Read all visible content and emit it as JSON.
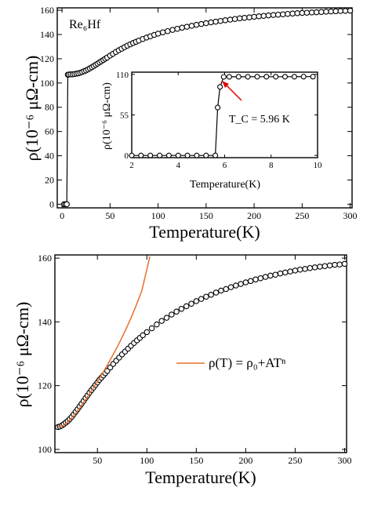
{
  "chart_data": [
    {
      "type": "scatter",
      "label": "Re₆Hf",
      "xlabel": "Temperature(K)",
      "ylabel": "ρ(10⁻⁶ μΩ-cm)",
      "xlim": [
        -5,
        302
      ],
      "ylim": [
        -3,
        162
      ],
      "xticks": [
        0,
        50,
        100,
        150,
        200,
        250,
        300
      ],
      "yticks": [
        0,
        20,
        40,
        60,
        80,
        100,
        120,
        140,
        160
      ],
      "series": [
        {
          "x": [
            2,
            3.5,
            5,
            6,
            7,
            9,
            11,
            13,
            15,
            17,
            19,
            21,
            23,
            25,
            27,
            29,
            31,
            33,
            35,
            37,
            39,
            41,
            43,
            45,
            47,
            50,
            53,
            56,
            59,
            62,
            65,
            68,
            71,
            74,
            77,
            80,
            84,
            88,
            92,
            96,
            100,
            105,
            110,
            115,
            120,
            125,
            130,
            135,
            140,
            145,
            150,
            155,
            160,
            165,
            170,
            175,
            180,
            185,
            190,
            195,
            200,
            205,
            210,
            215,
            220,
            225,
            230,
            235,
            240,
            245,
            250,
            255,
            260,
            265,
            270,
            275,
            280,
            285,
            290,
            295,
            300
          ],
          "y": [
            0,
            0,
            0,
            106.9,
            107,
            107.1,
            107.2,
            107.4,
            107.7,
            108,
            108.5,
            109,
            109.7,
            110.4,
            111.2,
            112.1,
            113,
            114,
            115,
            116,
            117,
            118,
            119,
            120,
            121,
            122.6,
            124.1,
            125.6,
            127,
            128.3,
            129.6,
            130.8,
            131.9,
            133,
            134,
            135,
            136.3,
            137.5,
            138.6,
            139.7,
            140.7,
            141.8,
            142.8,
            143.8,
            144.7,
            145.6,
            146.4,
            147.2,
            148,
            148.7,
            149.4,
            150,
            150.6,
            151.2,
            151.8,
            152.3,
            152.8,
            153.3,
            153.8,
            154.2,
            154.6,
            155,
            155.4,
            155.8,
            156.1,
            156.4,
            156.7,
            157,
            157.3,
            157.6,
            157.8,
            158,
            158.2,
            158.4,
            158.6,
            158.8,
            159,
            159.2,
            159.4,
            159.5,
            159.7
          ]
        }
      ],
      "inset": {
        "type": "line",
        "xlabel": "Temperature(K)",
        "ylabel": "ρ(10⁻⁶ μΩ-cm)",
        "xlim": [
          2,
          10
        ],
        "ylim": [
          -3,
          113
        ],
        "xticks": [
          2,
          4,
          6,
          8,
          10
        ],
        "yticks": [
          0,
          55,
          110
        ],
        "annotation": "T_C = 5.96 K",
        "series": [
          {
            "x": [
              2,
              2.4,
              2.8,
              3.2,
              3.6,
              4,
              4.4,
              4.8,
              5.2,
              5.6,
              5.7,
              5.8,
              5.96,
              6.2,
              6.6,
              7,
              7.4,
              7.8,
              8.2,
              8.6,
              9,
              9.4,
              9.8
            ],
            "y": [
              0,
              0,
              0,
              0,
              0,
              0,
              0,
              0,
              0,
              0,
              65,
              93,
              106.6,
              106.7,
              106.7,
              106.7,
              106.8,
              106.8,
              106.8,
              106.8,
              106.8,
              106.9,
              106.9
            ]
          }
        ]
      }
    },
    {
      "type": "scatter",
      "xlabel": "Temperature(K)",
      "ylabel": "ρ(10⁻⁶ μΩ-cm)",
      "xlim": [
        7,
        302
      ],
      "ylim": [
        99,
        161
      ],
      "xticks": [
        50,
        100,
        150,
        200,
        250,
        300
      ],
      "yticks": [
        100,
        120,
        140,
        160
      ],
      "legend": "ρ(T) = ρ₀+ATⁿ",
      "fit_color": "#e8702a",
      "series": [
        {
          "x": [
            10,
            12,
            14,
            16,
            18,
            20,
            22,
            24,
            26,
            28,
            30,
            32,
            34,
            36,
            38,
            40,
            42,
            44,
            46,
            48,
            50,
            52,
            54,
            56,
            58,
            60,
            63,
            66,
            69,
            72,
            75,
            78,
            81,
            84,
            87,
            90,
            93,
            96,
            100,
            105,
            110,
            115,
            120,
            125,
            130,
            135,
            140,
            145,
            150,
            155,
            160,
            165,
            170,
            175,
            180,
            185,
            190,
            195,
            200,
            205,
            210,
            215,
            220,
            225,
            230,
            235,
            240,
            245,
            250,
            255,
            260,
            265,
            270,
            275,
            280,
            285,
            290,
            295,
            300
          ],
          "y": [
            107,
            107.2,
            107.5,
            107.9,
            108.4,
            108.9,
            109.5,
            110.2,
            111,
            111.8,
            112.6,
            113.5,
            114.3,
            115.2,
            116.1,
            116.9,
            117.8,
            118.6,
            119.4,
            120.2,
            121,
            121.8,
            122.5,
            123.2,
            123.9,
            124.6,
            125.7,
            126.8,
            127.8,
            128.8,
            129.8,
            130.7,
            131.6,
            132.5,
            133.4,
            134.2,
            135,
            135.8,
            136.8,
            138,
            139.2,
            140.3,
            141.3,
            142.3,
            143.2,
            144.1,
            144.9,
            145.7,
            146.5,
            147.2,
            147.9,
            148.5,
            149.2,
            149.8,
            150.3,
            150.9,
            151.4,
            151.9,
            152.4,
            152.8,
            153.3,
            153.7,
            154.1,
            154.5,
            154.8,
            155.2,
            155.5,
            155.8,
            156.1,
            156.4,
            156.6,
            156.9,
            157.1,
            157.3,
            157.5,
            157.7,
            157.9,
            158,
            158.2
          ]
        }
      ],
      "fit": {
        "x": [
          10,
          15,
          20,
          25,
          30,
          35,
          40,
          45,
          50,
          55,
          60,
          65,
          70,
          75,
          80,
          85,
          90,
          95,
          100,
          103
        ],
        "y": [
          107,
          107.5,
          108.6,
          110.2,
          112.1,
          114.2,
          116.5,
          118.9,
          121.3,
          123.8,
          126.4,
          129.2,
          132.1,
          135.2,
          138.5,
          142,
          145.8,
          149.9,
          156.5,
          160.5
        ]
      }
    }
  ]
}
